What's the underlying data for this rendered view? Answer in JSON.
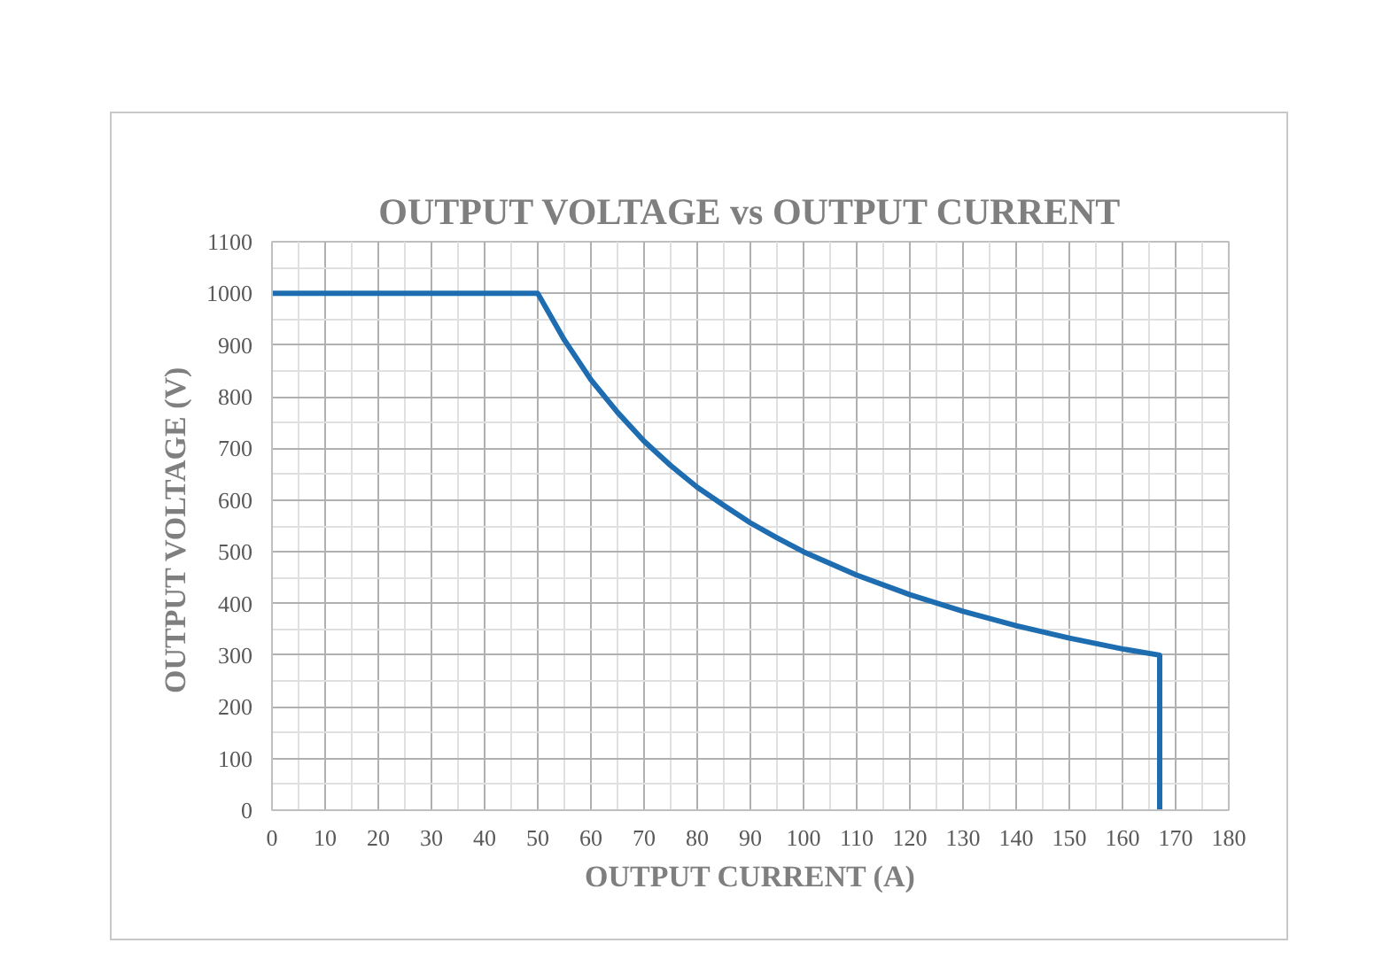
{
  "chart_data": {
    "type": "line",
    "title": "OUTPUT VOLTAGE vs OUTPUT CURRENT",
    "xlabel": "OUTPUT CURRENT (A)",
    "ylabel": "OUTPUT VOLTAGE  (V)",
    "xlim": [
      0,
      180
    ],
    "ylim": [
      0,
      1100
    ],
    "xticks": [
      0,
      10,
      20,
      30,
      40,
      50,
      60,
      70,
      80,
      90,
      100,
      110,
      120,
      130,
      140,
      150,
      160,
      170,
      180
    ],
    "yticks": [
      0,
      100,
      200,
      300,
      400,
      500,
      600,
      700,
      800,
      900,
      1000,
      1100
    ],
    "grid": true,
    "line_style": "solid",
    "series": [
      {
        "color": "#1f6db1",
        "x": [
          0,
          50,
          55,
          60,
          65,
          70,
          75,
          80,
          85,
          90,
          95,
          100,
          110,
          120,
          130,
          140,
          150,
          160,
          167,
          167
        ],
        "values": [
          1000,
          1000,
          910,
          833,
          770,
          714,
          667,
          625,
          590,
          556,
          527,
          500,
          455,
          417,
          385,
          357,
          333,
          312,
          300,
          0
        ]
      }
    ]
  }
}
